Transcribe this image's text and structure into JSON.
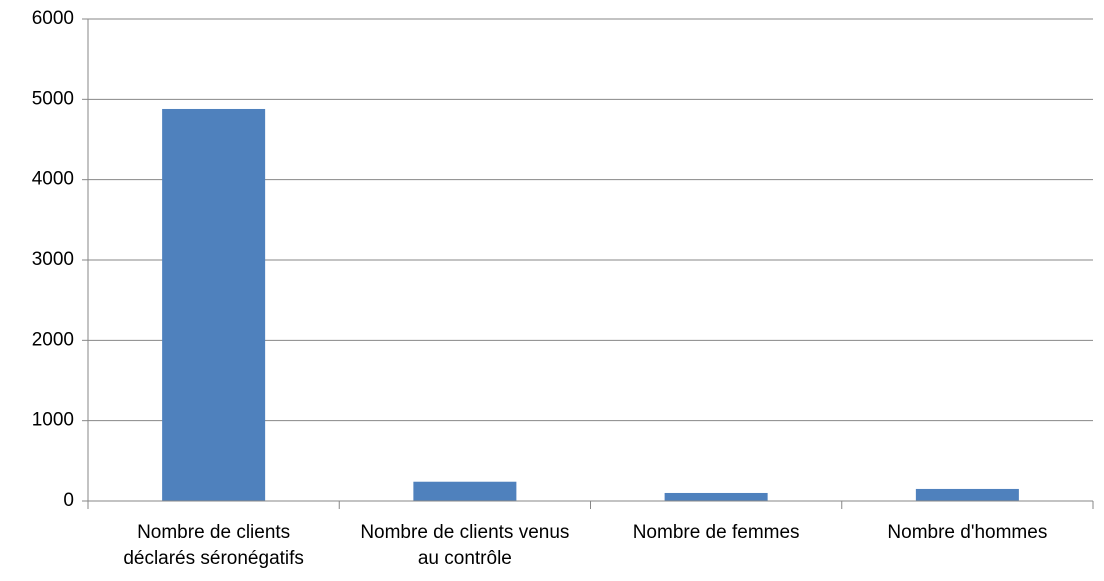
{
  "chart_data": {
    "type": "bar",
    "categories": [
      "Nombre de clients déclarés séronégatifs",
      "Nombre de clients venus au contrôle",
      "Nombre de femmes",
      "Nombre d'hommes"
    ],
    "values": [
      4880,
      240,
      100,
      150
    ],
    "color": "#4f81bd",
    "ylim": [
      0,
      6000
    ],
    "yticks": [
      0,
      1000,
      2000,
      3000,
      4000,
      5000,
      6000
    ],
    "grid": true
  }
}
